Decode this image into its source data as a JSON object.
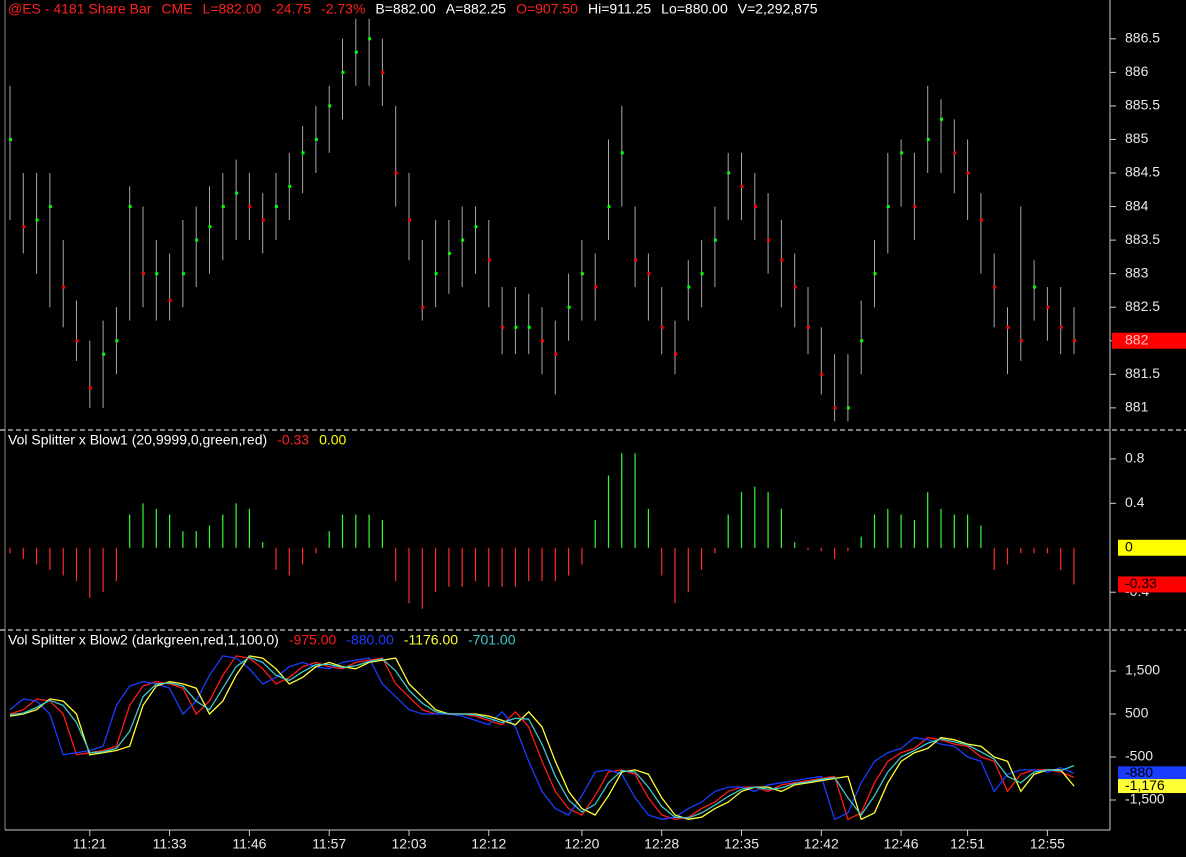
{
  "chart_data": [
    {
      "type": "ohlc",
      "header": [
        {
          "text": "@ES - 4181 Share Bar",
          "color": "#ff2020"
        },
        {
          "text": "CME",
          "color": "#ff2020"
        },
        {
          "text": "L=882.00",
          "color": "#ff2020"
        },
        {
          "text": "-24.75",
          "color": "#ff2020"
        },
        {
          "text": "-2.73%",
          "color": "#ff2020"
        },
        {
          "text": "B=882.00",
          "color": "#ffffff"
        },
        {
          "text": "A=882.25",
          "color": "#ffffff"
        },
        {
          "text": "O=907.50",
          "color": "#ff2020"
        },
        {
          "text": "Hi=911.25",
          "color": "#ffffff"
        },
        {
          "text": "Lo=880.00",
          "color": "#ffffff"
        },
        {
          "text": "V=2,292,875",
          "color": "#ffffff"
        }
      ],
      "high": [
        885.8,
        884.5,
        884.5,
        884.5,
        883.5,
        882.6,
        882.0,
        882.3,
        882.5,
        884.3,
        884.0,
        883.5,
        883.3,
        883.8,
        884.0,
        884.3,
        884.5,
        884.7,
        884.5,
        884.2,
        884.5,
        884.8,
        885.2,
        885.5,
        885.8,
        886.5,
        886.8,
        886.8,
        886.5,
        885.5,
        884.5,
        883.5,
        883.8,
        883.8,
        884.0,
        884.0,
        883.8,
        882.8,
        882.8,
        882.7,
        882.5,
        882.3,
        883.0,
        883.5,
        883.3,
        885.0,
        885.5,
        884.0,
        883.3,
        882.8,
        882.3,
        883.2,
        883.5,
        884.0,
        884.8,
        884.8,
        884.5,
        884.2,
        883.8,
        883.3,
        882.8,
        882.2,
        881.8,
        881.8,
        882.6,
        883.5,
        884.8,
        885.0,
        884.8,
        885.8,
        885.6,
        885.3,
        885.0,
        884.2,
        883.3,
        882.5,
        884.0,
        883.2,
        882.8,
        882.8,
        882.5
      ],
      "low": [
        883.8,
        883.3,
        883.0,
        882.5,
        882.2,
        881.7,
        881.0,
        881.0,
        881.5,
        882.3,
        882.5,
        882.3,
        882.3,
        882.5,
        882.8,
        883.0,
        883.2,
        883.5,
        883.5,
        883.3,
        883.5,
        883.8,
        884.2,
        884.5,
        884.8,
        885.3,
        885.8,
        885.8,
        885.5,
        884.0,
        883.2,
        882.3,
        882.5,
        882.7,
        882.8,
        883.0,
        882.5,
        881.8,
        881.8,
        881.8,
        881.5,
        881.2,
        882.0,
        882.3,
        882.3,
        883.5,
        884.0,
        882.8,
        882.3,
        881.8,
        881.5,
        882.3,
        882.5,
        882.8,
        883.8,
        883.8,
        883.5,
        883.0,
        882.5,
        882.2,
        881.8,
        881.2,
        880.8,
        880.8,
        881.5,
        882.5,
        883.3,
        884.0,
        883.5,
        884.5,
        884.5,
        884.2,
        883.8,
        883.0,
        882.2,
        881.5,
        881.7,
        882.3,
        882.0,
        881.8,
        881.8
      ],
      "close": [
        885.0,
        883.7,
        883.8,
        884.0,
        882.8,
        882.0,
        881.3,
        881.8,
        882.0,
        884.0,
        883.0,
        883.0,
        882.6,
        883.0,
        883.5,
        883.7,
        884.0,
        884.2,
        884.0,
        883.8,
        884.0,
        884.3,
        884.8,
        885.0,
        885.5,
        886.0,
        886.3,
        886.5,
        886.0,
        884.5,
        883.8,
        882.5,
        883.0,
        883.3,
        883.5,
        883.7,
        883.2,
        882.2,
        882.2,
        882.2,
        882.0,
        881.8,
        882.5,
        883.0,
        882.8,
        884.0,
        884.8,
        883.2,
        883.0,
        882.2,
        881.8,
        882.8,
        883.0,
        883.5,
        884.5,
        884.3,
        884.0,
        883.5,
        883.2,
        882.8,
        882.2,
        881.5,
        881.0,
        881.0,
        882.0,
        883.0,
        884.0,
        884.8,
        884.0,
        885.0,
        885.3,
        884.8,
        884.5,
        883.8,
        882.8,
        882.2,
        882.0,
        882.8,
        882.5,
        882.2,
        882.0
      ],
      "up_color": "#00ff00",
      "down_color": "#ff0000",
      "bar_color": "#a8a8a8",
      "ylim": [
        880.67,
        886.81
      ],
      "yticks": [
        881,
        881.5,
        882,
        882.5,
        883,
        883.5,
        884,
        884.5,
        885,
        885.5,
        886,
        886.5
      ],
      "last_marker": {
        "value": 882,
        "color": "#ff0000"
      }
    },
    {
      "type": "bar",
      "title": "Vol Splitter x Blow1 (20,9999,0,green,red)",
      "header_values": [
        {
          "text": "-0.33",
          "color": "#ff2020"
        },
        {
          "text": "0.00",
          "color": "#ffff00"
        }
      ],
      "values": [
        -0.05,
        -0.1,
        -0.15,
        -0.2,
        -0.25,
        -0.3,
        -0.45,
        -0.4,
        -0.3,
        0.3,
        0.4,
        0.35,
        0.3,
        0.15,
        0.15,
        0.2,
        0.3,
        0.4,
        0.35,
        0.05,
        -0.2,
        -0.25,
        -0.15,
        -0.05,
        0.15,
        0.3,
        0.3,
        0.3,
        0.25,
        -0.3,
        -0.5,
        -0.55,
        -0.4,
        -0.35,
        -0.35,
        -0.3,
        -0.35,
        -0.35,
        -0.35,
        -0.3,
        -0.3,
        -0.3,
        -0.25,
        -0.15,
        0.25,
        0.65,
        0.85,
        0.85,
        0.35,
        -0.25,
        -0.5,
        -0.4,
        -0.2,
        -0.05,
        0.3,
        0.5,
        0.55,
        0.5,
        0.35,
        0.05,
        -0.02,
        -0.03,
        -0.1,
        -0.03,
        0.1,
        0.3,
        0.35,
        0.3,
        0.25,
        0.5,
        0.35,
        0.3,
        0.3,
        0.2,
        -0.2,
        -0.15,
        -0.05,
        -0.05,
        -0.05,
        -0.2,
        -0.33
      ],
      "up_color": "#33ff33",
      "down_color": "#ff2a2a",
      "ylim": [
        -0.74,
        1.06
      ],
      "yticks": [
        -0.4,
        0.4,
        0.8
      ],
      "markers": [
        {
          "value": 0,
          "label": "0",
          "color": "#ffff00"
        },
        {
          "value": -0.33,
          "label": "-0.33",
          "color": "#ff0000"
        }
      ]
    },
    {
      "type": "line",
      "title": "Vol Splitter x Blow2 (darkgreen,red,1,100,0)",
      "categories": [
        null,
        null,
        null,
        null,
        null,
        null,
        "11:21",
        null,
        null,
        null,
        null,
        null,
        "11:33",
        null,
        null,
        null,
        null,
        null,
        "11:46",
        null,
        null,
        null,
        null,
        null,
        "11:57",
        null,
        null,
        null,
        null,
        null,
        "12:03",
        null,
        null,
        null,
        null,
        null,
        "12:12",
        null,
        null,
        null,
        null,
        null,
        null,
        "12:20",
        null,
        null,
        null,
        null,
        null,
        "12:28",
        null,
        null,
        null,
        null,
        null,
        "12:35",
        null,
        null,
        null,
        null,
        null,
        "12:42",
        null,
        null,
        null,
        null,
        null,
        "12:46",
        null,
        null,
        null,
        null,
        "12:51",
        null,
        null,
        null,
        null,
        null,
        "12:55",
        null,
        null
      ],
      "series": [
        {
          "color": "#ff1a1a",
          "last_label": "-975.00",
          "marker_label": "-975",
          "values": [
            500,
            600,
            850,
            800,
            500,
            -450,
            -400,
            -350,
            -250,
            700,
            1150,
            1250,
            1200,
            1100,
            500,
            800,
            1400,
            1850,
            1800,
            1550,
            1200,
            1350,
            1600,
            1700,
            1600,
            1550,
            1700,
            1750,
            1800,
            1200,
            900,
            600,
            500,
            500,
            500,
            450,
            350,
            250,
            550,
            200,
            -600,
            -1300,
            -1700,
            -1850,
            -1400,
            -850,
            -800,
            -900,
            -1450,
            -1850,
            -1950,
            -1900,
            -1700,
            -1550,
            -1300,
            -1200,
            -1200,
            -1300,
            -1150,
            -1100,
            -1050,
            -1000,
            -950,
            -1950,
            -1800,
            -1100,
            -600,
            -400,
            -300,
            -50,
            -100,
            -200,
            -250,
            -500,
            -600,
            -1300,
            -900,
            -800,
            -800,
            -850,
            -975
          ]
        },
        {
          "color": "#1a3cff",
          "last_label": "-880.00",
          "marker_label": "-880",
          "values": [
            600,
            850,
            800,
            500,
            -450,
            -400,
            -350,
            -250,
            700,
            1150,
            1250,
            1200,
            1100,
            500,
            800,
            1400,
            1850,
            1800,
            1550,
            1200,
            1350,
            1600,
            1700,
            1600,
            1550,
            1700,
            1750,
            1800,
            1200,
            900,
            600,
            500,
            500,
            500,
            450,
            350,
            250,
            550,
            200,
            -600,
            -1300,
            -1700,
            -1850,
            -1400,
            -850,
            -800,
            -900,
            -1450,
            -1850,
            -1950,
            -1900,
            -1700,
            -1550,
            -1300,
            -1200,
            -1200,
            -1300,
            -1150,
            -1100,
            -1050,
            -1000,
            -950,
            -1950,
            -1800,
            -1100,
            -600,
            -400,
            -300,
            -50,
            -100,
            -200,
            -250,
            -500,
            -600,
            -1300,
            -900,
            -800,
            -800,
            -850,
            -750,
            -880
          ]
        },
        {
          "color": "#ffff33",
          "last_label": "-1176.00",
          "marker_label": "-1,176",
          "values": [
            450,
            500,
            600,
            850,
            800,
            500,
            -450,
            -400,
            -350,
            -250,
            700,
            1150,
            1250,
            1200,
            1100,
            500,
            800,
            1400,
            1850,
            1800,
            1550,
            1200,
            1350,
            1600,
            1700,
            1600,
            1550,
            1700,
            1750,
            1800,
            1200,
            900,
            600,
            500,
            500,
            500,
            450,
            350,
            250,
            550,
            200,
            -600,
            -1300,
            -1700,
            -1850,
            -1400,
            -850,
            -800,
            -900,
            -1450,
            -1850,
            -1950,
            -1900,
            -1700,
            -1550,
            -1300,
            -1200,
            -1200,
            -1300,
            -1150,
            -1100,
            -1050,
            -1000,
            -950,
            -1950,
            -1800,
            -1100,
            -600,
            -400,
            -300,
            -50,
            -100,
            -200,
            -250,
            -500,
            -600,
            -1300,
            -900,
            -800,
            -800,
            -1176
          ]
        },
        {
          "color": "#40c8c8",
          "last_label": "-701.00",
          "values": [
            480,
            520,
            650,
            820,
            700,
            300,
            -400,
            -380,
            -300,
            100,
            900,
            1200,
            1220,
            1150,
            800,
            600,
            1100,
            1600,
            1820,
            1700,
            1400,
            1280,
            1480,
            1650,
            1650,
            1580,
            1620,
            1720,
            1780,
            1500,
            1050,
            750,
            550,
            500,
            500,
            480,
            400,
            300,
            400,
            380,
            -200,
            -950,
            -1500,
            -1780,
            -1600,
            -1100,
            -820,
            -850,
            -1200,
            -1650,
            -1900,
            -1920,
            -1800,
            -1620,
            -1420,
            -1250,
            -1200,
            -1250,
            -1220,
            -1120,
            -1080,
            -1020,
            -980,
            -1450,
            -1850,
            -1400,
            -850,
            -500,
            -350,
            -180,
            -80,
            -150,
            -220,
            -380,
            -550,
            -950,
            -1100,
            -850,
            -800,
            -820,
            -701
          ]
        }
      ],
      "ylim": [
        -2198,
        2453
      ],
      "yticks": [
        {
          "value": -1500,
          "label": "-1,500"
        },
        -500,
        500,
        {
          "value": 1500,
          "label": "1,500"
        }
      ]
    }
  ]
}
